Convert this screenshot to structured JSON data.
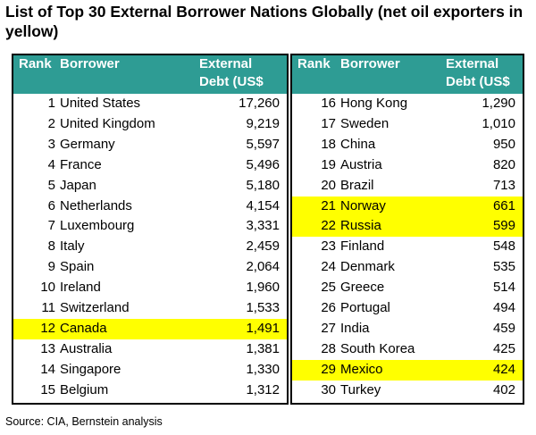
{
  "title": "List of Top 30 External Borrower Nations Globally (net oil exporters in yellow)",
  "source": "Source: CIA, Bernstein analysis",
  "colors": {
    "header_bg": "#2e9c94",
    "header_text": "#ffffff",
    "highlight": "#ffff00"
  },
  "headers": {
    "rank": "Rank",
    "borrower": "Borrower",
    "debt_line1": "External",
    "debt_line2": "Debt (US$"
  },
  "chart_data": {
    "type": "table",
    "title": "List of Top 30 External Borrower Nations Globally (net oil exporters in yellow)",
    "columns": [
      "Rank",
      "Borrower",
      "External Debt (US$"
    ],
    "left": [
      {
        "rank": "1",
        "name": "United States",
        "value": "17,260",
        "oil_exporter": false
      },
      {
        "rank": "2",
        "name": "United Kingdom",
        "value": "9,219",
        "oil_exporter": false
      },
      {
        "rank": "3",
        "name": "Germany",
        "value": "5,597",
        "oil_exporter": false
      },
      {
        "rank": "4",
        "name": "France",
        "value": "5,496",
        "oil_exporter": false
      },
      {
        "rank": "5",
        "name": "Japan",
        "value": "5,180",
        "oil_exporter": false
      },
      {
        "rank": "6",
        "name": "Netherlands",
        "value": "4,154",
        "oil_exporter": false
      },
      {
        "rank": "7",
        "name": "Luxembourg",
        "value": "3,331",
        "oil_exporter": false
      },
      {
        "rank": "8",
        "name": "Italy",
        "value": "2,459",
        "oil_exporter": false
      },
      {
        "rank": "9",
        "name": "Spain",
        "value": "2,064",
        "oil_exporter": false
      },
      {
        "rank": "10",
        "name": "Ireland",
        "value": "1,960",
        "oil_exporter": false
      },
      {
        "rank": "11",
        "name": "Switzerland",
        "value": "1,533",
        "oil_exporter": false
      },
      {
        "rank": "12",
        "name": "Canada",
        "value": "1,491",
        "oil_exporter": true
      },
      {
        "rank": "13",
        "name": "Australia",
        "value": "1,381",
        "oil_exporter": false
      },
      {
        "rank": "14",
        "name": "Singapore",
        "value": "1,330",
        "oil_exporter": false
      },
      {
        "rank": "15",
        "name": "Belgium",
        "value": "1,312",
        "oil_exporter": false
      }
    ],
    "right": [
      {
        "rank": "16",
        "name": "Hong Kong",
        "value": "1,290",
        "oil_exporter": false
      },
      {
        "rank": "17",
        "name": "Sweden",
        "value": "1,010",
        "oil_exporter": false
      },
      {
        "rank": "18",
        "name": "China",
        "value": "950",
        "oil_exporter": false
      },
      {
        "rank": "19",
        "name": "Austria",
        "value": "820",
        "oil_exporter": false
      },
      {
        "rank": "20",
        "name": "Brazil",
        "value": "713",
        "oil_exporter": false
      },
      {
        "rank": "21",
        "name": "Norway",
        "value": "661",
        "oil_exporter": true
      },
      {
        "rank": "22",
        "name": "Russia",
        "value": "599",
        "oil_exporter": true
      },
      {
        "rank": "23",
        "name": "Finland",
        "value": "548",
        "oil_exporter": false
      },
      {
        "rank": "24",
        "name": "Denmark",
        "value": "535",
        "oil_exporter": false
      },
      {
        "rank": "25",
        "name": "Greece",
        "value": "514",
        "oil_exporter": false
      },
      {
        "rank": "26",
        "name": "Portugal",
        "value": "494",
        "oil_exporter": false
      },
      {
        "rank": "27",
        "name": "India",
        "value": "459",
        "oil_exporter": false
      },
      {
        "rank": "28",
        "name": "South Korea",
        "value": "425",
        "oil_exporter": false
      },
      {
        "rank": "29",
        "name": "Mexico",
        "value": "424",
        "oil_exporter": true
      },
      {
        "rank": "30",
        "name": "Turkey",
        "value": "402",
        "oil_exporter": false
      }
    ]
  }
}
